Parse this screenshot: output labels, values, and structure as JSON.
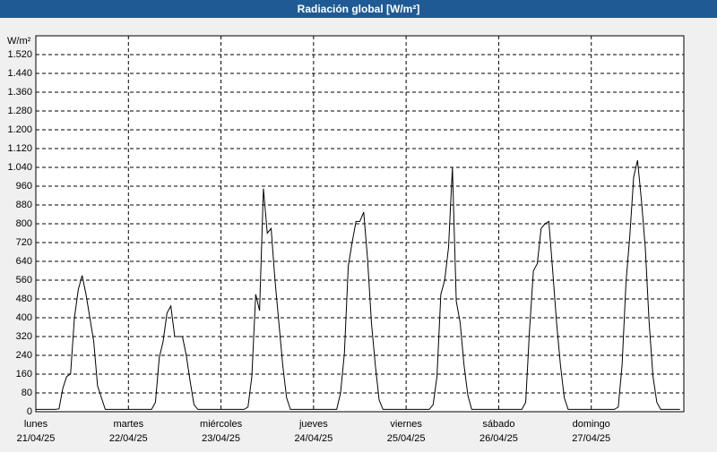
{
  "chart_data": {
    "type": "line",
    "title": "Radiación global [W/m²]",
    "y_label": "W/m²",
    "color": "#000000",
    "grid": true,
    "ylim": [
      0,
      1600
    ],
    "yticks": [
      0,
      80,
      160,
      240,
      320,
      400,
      480,
      560,
      640,
      720,
      800,
      880,
      960,
      {
        "value": 1040,
        "label": "1.040"
      },
      {
        "value": 1120,
        "label": "1.120"
      },
      {
        "value": 1200,
        "label": "1.200"
      },
      {
        "value": 1280,
        "label": "1.280"
      },
      {
        "value": 1360,
        "label": "1.360"
      },
      {
        "value": 1440,
        "label": "1.440"
      },
      {
        "value": 1520,
        "label": "1.520"
      }
    ],
    "categories": [
      [
        "lunes",
        "21/04/25"
      ],
      null,
      null,
      null,
      null,
      null,
      null,
      null,
      null,
      null,
      null,
      null,
      null,
      null,
      null,
      null,
      null,
      null,
      null,
      null,
      null,
      null,
      null,
      null,
      [
        "martes",
        "22/04/25"
      ],
      null,
      null,
      null,
      null,
      null,
      null,
      null,
      null,
      null,
      null,
      null,
      null,
      null,
      null,
      null,
      null,
      null,
      null,
      null,
      null,
      null,
      null,
      null,
      [
        "miércoles",
        "23/04/25"
      ],
      null,
      null,
      null,
      null,
      null,
      null,
      null,
      null,
      null,
      null,
      null,
      null,
      null,
      null,
      null,
      null,
      null,
      null,
      null,
      null,
      null,
      null,
      null,
      [
        "jueves",
        "24/04/25"
      ],
      null,
      null,
      null,
      null,
      null,
      null,
      null,
      null,
      null,
      null,
      null,
      null,
      null,
      null,
      null,
      null,
      null,
      null,
      null,
      null,
      null,
      null,
      null,
      [
        "viernes",
        "25/04/25"
      ],
      null,
      null,
      null,
      null,
      null,
      null,
      null,
      null,
      null,
      null,
      null,
      null,
      null,
      null,
      null,
      null,
      null,
      null,
      null,
      null,
      null,
      null,
      null,
      [
        "sábado",
        "26/04/25"
      ],
      null,
      null,
      null,
      null,
      null,
      null,
      null,
      null,
      null,
      null,
      null,
      null,
      null,
      null,
      null,
      null,
      null,
      null,
      null,
      null,
      null,
      null,
      null,
      [
        "domingo",
        "27/04/25"
      ],
      null,
      null,
      null,
      null,
      null,
      null,
      null,
      null,
      null,
      null,
      null,
      null,
      null,
      null,
      null,
      null,
      null,
      null,
      null,
      null,
      null,
      null,
      null
    ],
    "values": [
      10,
      10,
      10,
      10,
      10,
      10,
      12,
      100,
      150,
      160,
      400,
      520,
      580,
      500,
      400,
      300,
      110,
      60,
      10,
      10,
      10,
      10,
      10,
      10,
      10,
      10,
      10,
      10,
      10,
      10,
      10,
      40,
      230,
      300,
      420,
      450,
      320,
      320,
      320,
      240,
      130,
      30,
      10,
      10,
      10,
      10,
      10,
      10,
      10,
      10,
      10,
      10,
      10,
      10,
      10,
      20,
      150,
      500,
      430,
      950,
      760,
      780,
      560,
      380,
      200,
      60,
      10,
      10,
      10,
      10,
      10,
      10,
      10,
      10,
      10,
      10,
      10,
      10,
      10,
      80,
      250,
      620,
      720,
      810,
      810,
      850,
      650,
      380,
      200,
      50,
      10,
      10,
      10,
      10,
      10,
      10,
      10,
      10,
      10,
      10,
      10,
      10,
      10,
      30,
      150,
      500,
      560,
      700,
      1040,
      470,
      380,
      200,
      70,
      10,
      10,
      10,
      10,
      10,
      10,
      10,
      10,
      10,
      10,
      10,
      10,
      10,
      10,
      40,
      350,
      600,
      630,
      780,
      800,
      810,
      600,
      380,
      200,
      60,
      10,
      10,
      10,
      10,
      10,
      10,
      10,
      10,
      10,
      10,
      10,
      10,
      10,
      20,
      200,
      550,
      750,
      1000,
      1070,
      900,
      700,
      380,
      150,
      40,
      10,
      10,
      10,
      10,
      10,
      10
    ]
  }
}
